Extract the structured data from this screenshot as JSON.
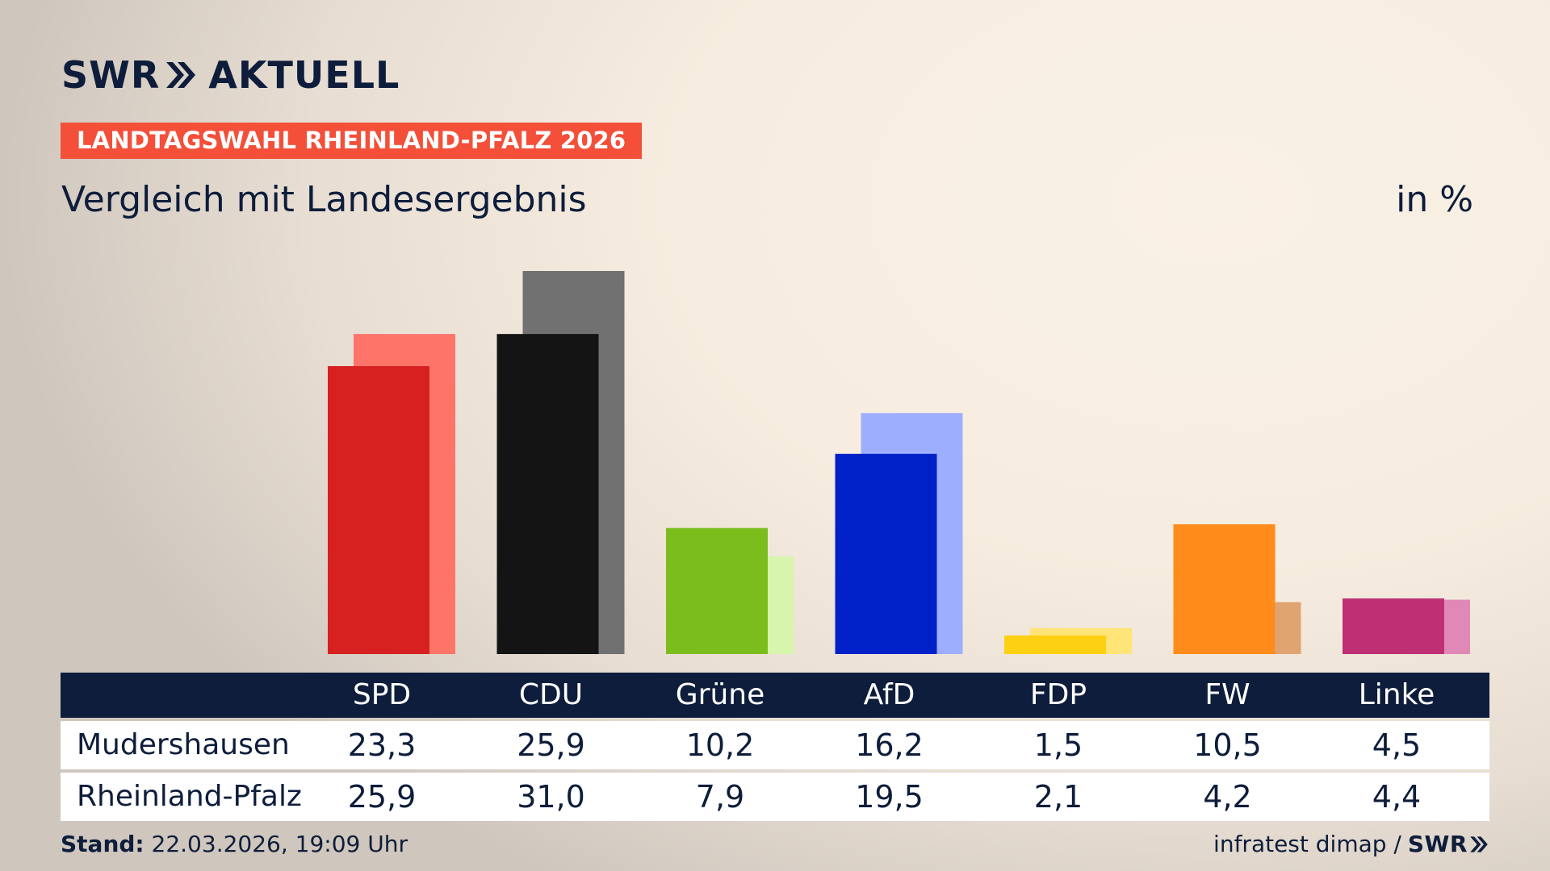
{
  "header": {
    "logo_left": "SWR",
    "logo_right": "AKTUELL",
    "kicker": "LANDTAGSWAHL RHEINLAND-PFALZ 2026",
    "subtitle": "Vergleich mit Landesergebnis",
    "unit": "in %"
  },
  "colors": {
    "navy": "#0d1d3b",
    "kicker_red": "#f44f39"
  },
  "chart_data": {
    "type": "bar",
    "categories": [
      "SPD",
      "CDU",
      "Grüne",
      "AfD",
      "FDP",
      "FW",
      "Linke"
    ],
    "series": [
      {
        "name": "Mudershausen",
        "values": [
          23.3,
          25.9,
          10.2,
          16.2,
          1.5,
          10.5,
          4.5
        ],
        "colors": [
          "#d72020",
          "#141414",
          "#7cbd1e",
          "#0021c8",
          "#fed012",
          "#ff8c1a",
          "#be2f73"
        ]
      },
      {
        "name": "Rheinland-Pfalz",
        "values": [
          25.9,
          31.0,
          7.9,
          19.5,
          2.1,
          4.2,
          4.4
        ],
        "colors": [
          "#ff7469",
          "#717171",
          "#d7f5ad",
          "#9eaeff",
          "#ffe477",
          "#dfa470",
          "#e189b6"
        ]
      }
    ],
    "ylim": [
      0,
      31.0
    ],
    "grid": false,
    "legend": "table below chart"
  },
  "table": {
    "columns": [
      "SPD",
      "CDU",
      "Grüne",
      "AfD",
      "FDP",
      "FW",
      "Linke"
    ],
    "rows": [
      {
        "label": "Mudershausen",
        "values": [
          "23,3",
          "25,9",
          "10,2",
          "16,2",
          "1,5",
          "10,5",
          "4,5"
        ]
      },
      {
        "label": "Rheinland-Pfalz",
        "values": [
          "25,9",
          "31,0",
          "7,9",
          "19,5",
          "2,1",
          "4,2",
          "4,4"
        ]
      }
    ]
  },
  "footer": {
    "stand_label": "Stand:",
    "stand_value": "22.03.2026, 19:09 Uhr",
    "source": "infratest dimap /",
    "source_logo": "SWR"
  }
}
